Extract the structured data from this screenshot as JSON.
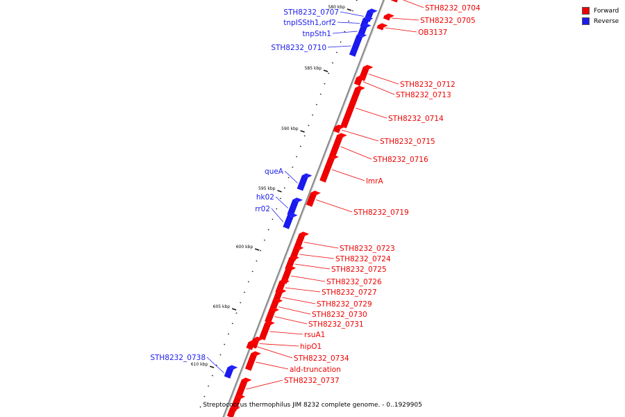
{
  "legend": {
    "forward_label": "Forward",
    "reverse_label": "Reverse"
  },
  "colors": {
    "forward": "#ee0000",
    "reverse": "#1a1aee",
    "backbone": "#888888",
    "tick": "#111111"
  },
  "caption": "Streptococcus thermophilus JIM 8232 complete genome. - 0..1929905",
  "scale_labels": [
    "580 kbp",
    "585 kbp",
    "590 kbp",
    "595 kbp",
    "600 kbp",
    "605 kbp",
    "610 kbp"
  ],
  "genes": [
    {
      "name": "STH8232_0704",
      "strand": "forward"
    },
    {
      "name": "STH8232_0705",
      "strand": "forward"
    },
    {
      "name": "OB3137",
      "strand": "forward"
    },
    {
      "name": "STH8232_0707",
      "strand": "reverse"
    },
    {
      "name": "tnpISSth1,orf2",
      "strand": "reverse"
    },
    {
      "name": "tnpSth1",
      "strand": "reverse"
    },
    {
      "name": "STH8232_0710",
      "strand": "reverse"
    },
    {
      "name": "STH8232_0712",
      "strand": "forward"
    },
    {
      "name": "STH8232_0713",
      "strand": "forward"
    },
    {
      "name": "STH8232_0714",
      "strand": "forward"
    },
    {
      "name": "STH8232_0715",
      "strand": "forward"
    },
    {
      "name": "STH8232_0716",
      "strand": "forward"
    },
    {
      "name": "queA",
      "strand": "reverse"
    },
    {
      "name": "lmrA",
      "strand": "forward"
    },
    {
      "name": "hk02",
      "strand": "reverse"
    },
    {
      "name": "rr02",
      "strand": "reverse"
    },
    {
      "name": "STH8232_0719",
      "strand": "forward"
    },
    {
      "name": "STH8232_0723",
      "strand": "forward"
    },
    {
      "name": "STH8232_0724",
      "strand": "forward"
    },
    {
      "name": "STH8232_0725",
      "strand": "forward"
    },
    {
      "name": "STH8232_0726",
      "strand": "forward"
    },
    {
      "name": "STH8232_0727",
      "strand": "forward"
    },
    {
      "name": "STH8232_0729",
      "strand": "forward"
    },
    {
      "name": "STH8232_0730",
      "strand": "forward"
    },
    {
      "name": "STH8232_0731",
      "strand": "forward"
    },
    {
      "name": "rsuA1",
      "strand": "forward"
    },
    {
      "name": "hipO1",
      "strand": "forward"
    },
    {
      "name": "STH8232_0734",
      "strand": "forward"
    },
    {
      "name": "ald-truncation",
      "strand": "forward"
    },
    {
      "name": "STH8232_0737",
      "strand": "forward"
    },
    {
      "name": "STH8232_0738",
      "strand": "reverse"
    }
  ]
}
